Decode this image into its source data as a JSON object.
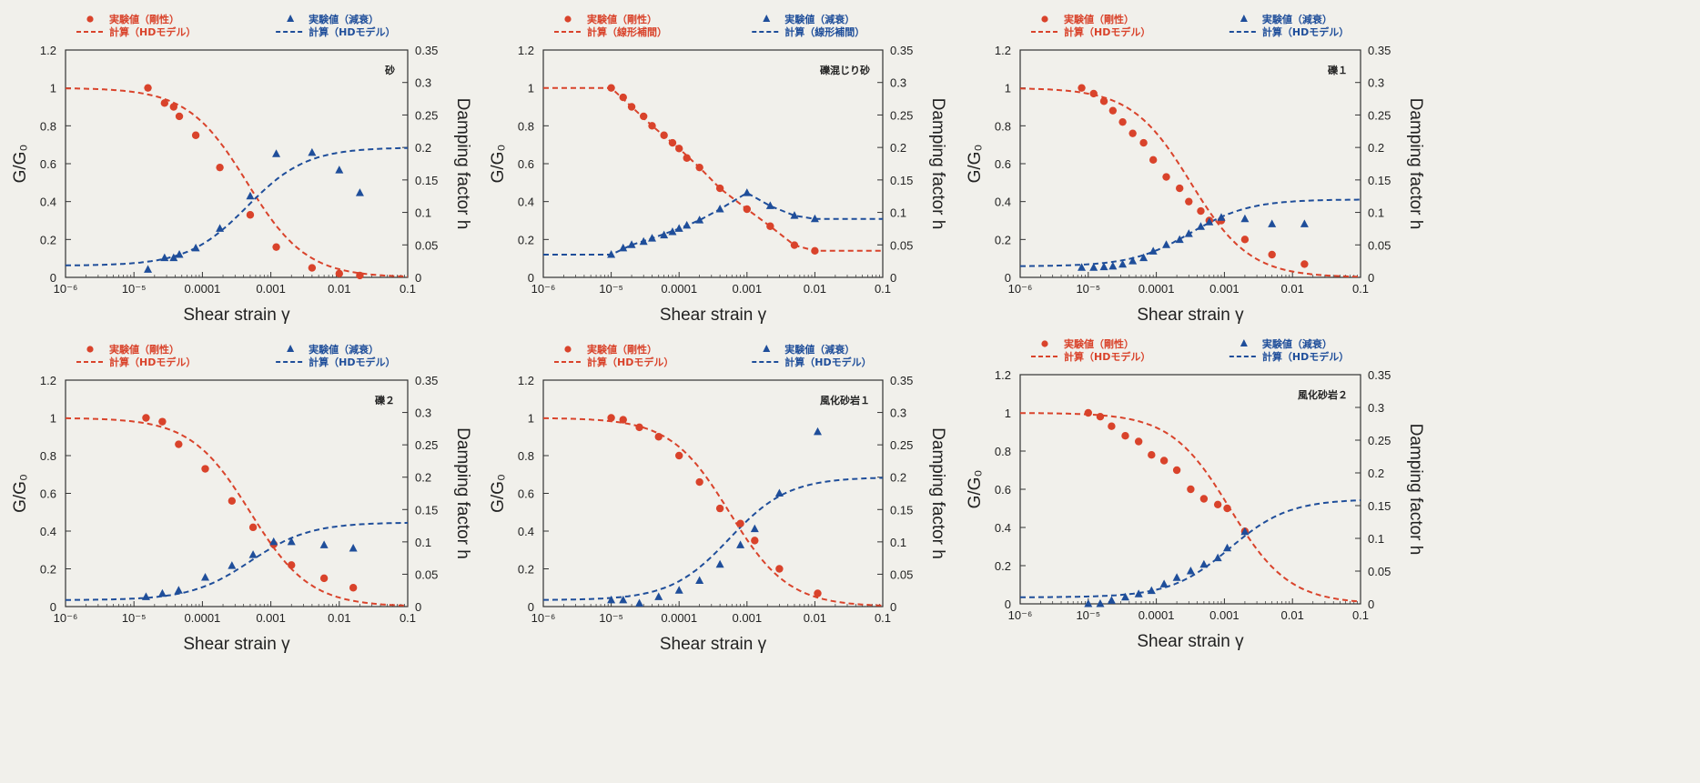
{
  "legend": {
    "stiffness_exp": "実験値（剛性）",
    "damping_exp": "実験値（減衰）",
    "hd_model": "計算（HDモデル）",
    "linear_interp": "計算（線形補間）"
  },
  "axes": {
    "xlabel": "Shear strain γ",
    "ylabel_left": "G/G₀",
    "ylabel_right": "Damping factor h",
    "x_ticks": [
      "10⁻⁶",
      "10⁻⁵",
      "0.0001",
      "0.001",
      "0.01",
      "0.1"
    ],
    "y_left_ticks": [
      "0",
      "0.2",
      "0.4",
      "0.6",
      "0.8",
      "1",
      "1.2"
    ],
    "y_right_ticks": [
      "0",
      "0.05",
      "0.1",
      "0.15",
      "0.2",
      "0.25",
      "0.3",
      "0.35"
    ]
  },
  "colors": {
    "stiffness": "#d9432b",
    "damping": "#1f4e9a",
    "axis": "#333333",
    "background": "#f1f0eb"
  },
  "chart_data": [
    {
      "type": "scatter",
      "title": "砂",
      "xscale": "log",
      "xlim": [
        1e-06,
        0.1
      ],
      "ylim_left": [
        0,
        1.2
      ],
      "ylim_right": [
        0,
        0.35
      ],
      "calc_label": "hd_model",
      "series": [
        {
          "name": "実験値（剛性）",
          "axis": "left",
          "x": [
            1.6e-05,
            2.8e-05,
            3.8e-05,
            4.6e-05,
            8e-05,
            0.00018,
            0.0005,
            0.0012,
            0.004,
            0.01,
            0.02
          ],
          "y": [
            1.0,
            0.92,
            0.9,
            0.85,
            0.75,
            0.58,
            0.33,
            0.16,
            0.05,
            0.02,
            0.01
          ]
        },
        {
          "name": "実験値（減衰）",
          "axis": "right",
          "x": [
            1.6e-05,
            2.8e-05,
            3.8e-05,
            4.6e-05,
            8e-05,
            0.00018,
            0.0005,
            0.0012,
            0.004,
            0.01,
            0.02
          ],
          "y": [
            0.012,
            0.03,
            0.03,
            0.035,
            0.045,
            0.075,
            0.125,
            0.19,
            0.192,
            0.165,
            0.13
          ]
        },
        {
          "name": "計算（HDモデル）G/G₀",
          "axis": "left",
          "curve": "hd_g",
          "g0": 1.0,
          "gref": 0.00045
        },
        {
          "name": "計算（HDモデル）h",
          "axis": "right",
          "curve": "hd_h",
          "h0": 0.018,
          "hmax": 0.2,
          "gref": 0.00045
        }
      ]
    },
    {
      "type": "scatter",
      "title": "礫混じり砂",
      "xscale": "log",
      "xlim": [
        1e-06,
        0.1
      ],
      "ylim_left": [
        0,
        1.2
      ],
      "ylim_right": [
        0,
        0.35
      ],
      "calc_label": "linear_interp",
      "series": [
        {
          "name": "実験値（剛性）",
          "axis": "left",
          "x": [
            1e-05,
            1.5e-05,
            2e-05,
            3e-05,
            4e-05,
            6e-05,
            8e-05,
            0.0001,
            0.00013,
            0.0002,
            0.0004,
            0.001,
            0.0022,
            0.005,
            0.01
          ],
          "y": [
            1.0,
            0.95,
            0.9,
            0.85,
            0.8,
            0.75,
            0.71,
            0.68,
            0.63,
            0.58,
            0.47,
            0.36,
            0.27,
            0.17,
            0.14
          ]
        },
        {
          "name": "実験値（減衰）",
          "axis": "right",
          "x": [
            1e-05,
            1.5e-05,
            2e-05,
            3e-05,
            4e-05,
            6e-05,
            8e-05,
            0.0001,
            0.00013,
            0.0002,
            0.0004,
            0.001,
            0.0022,
            0.005,
            0.01
          ],
          "y": [
            0.035,
            0.045,
            0.05,
            0.055,
            0.06,
            0.065,
            0.07,
            0.075,
            0.08,
            0.088,
            0.105,
            0.13,
            0.11,
            0.095,
            0.09
          ]
        },
        {
          "name": "計算（線形補間）G/G₀",
          "axis": "left",
          "curve": "polyline",
          "x": [
            1e-06,
            1e-05,
            2e-05,
            4e-05,
            0.0001,
            0.0002,
            0.0004,
            0.001,
            0.0022,
            0.005,
            0.01,
            0.1
          ],
          "y": [
            1.0,
            1.0,
            0.9,
            0.8,
            0.68,
            0.58,
            0.47,
            0.36,
            0.27,
            0.17,
            0.14,
            0.14
          ]
        },
        {
          "name": "計算（線形補間）h",
          "axis": "right",
          "curve": "polyline",
          "x": [
            1e-06,
            1e-05,
            2e-05,
            4e-05,
            0.0001,
            0.0002,
            0.0004,
            0.001,
            0.0022,
            0.005,
            0.01,
            0.1
          ],
          "y": [
            0.035,
            0.035,
            0.05,
            0.06,
            0.075,
            0.088,
            0.105,
            0.13,
            0.11,
            0.095,
            0.09,
            0.09
          ]
        }
      ]
    },
    {
      "type": "scatter",
      "title": "礫１",
      "xscale": "log",
      "xlim": [
        1e-06,
        0.1
      ],
      "ylim_left": [
        0,
        1.2
      ],
      "ylim_right": [
        0,
        0.35
      ],
      "calc_label": "hd_model",
      "series": [
        {
          "name": "実験値（剛性）",
          "axis": "left",
          "x": [
            8e-06,
            1.2e-05,
            1.7e-05,
            2.3e-05,
            3.2e-05,
            4.5e-05,
            6.5e-05,
            9e-05,
            0.00014,
            0.00022,
            0.0003,
            0.00045,
            0.0006,
            0.0009,
            0.002,
            0.005,
            0.015
          ],
          "y": [
            1.0,
            0.97,
            0.93,
            0.88,
            0.82,
            0.76,
            0.71,
            0.62,
            0.53,
            0.47,
            0.4,
            0.35,
            0.3,
            0.3,
            0.2,
            0.12,
            0.07
          ]
        },
        {
          "name": "実験値（減衰）",
          "axis": "right",
          "x": [
            8e-06,
            1.2e-05,
            1.7e-05,
            2.3e-05,
            3.2e-05,
            4.5e-05,
            6.5e-05,
            9e-05,
            0.00014,
            0.00022,
            0.0003,
            0.00045,
            0.0006,
            0.0009,
            0.002,
            0.005,
            0.015
          ],
          "y": [
            0.015,
            0.015,
            0.016,
            0.017,
            0.02,
            0.025,
            0.03,
            0.04,
            0.05,
            0.058,
            0.067,
            0.078,
            0.085,
            0.092,
            0.09,
            0.082,
            0.082
          ]
        },
        {
          "name": "計算（HDモデル）G/G₀",
          "axis": "left",
          "curve": "hd_g",
          "g0": 1.0,
          "gref": 0.00032
        },
        {
          "name": "計算（HDモデル）h",
          "axis": "right",
          "curve": "hd_h",
          "h0": 0.017,
          "hmax": 0.12,
          "gref": 0.00032
        }
      ]
    },
    {
      "type": "scatter",
      "title": "礫２",
      "xscale": "log",
      "xlim": [
        1e-06,
        0.1
      ],
      "ylim_left": [
        0,
        1.2
      ],
      "ylim_right": [
        0,
        0.35
      ],
      "calc_label": "hd_model",
      "series": [
        {
          "name": "実験値（剛性）",
          "axis": "left",
          "x": [
            1.5e-05,
            2.6e-05,
            4.5e-05,
            0.00011,
            0.00027,
            0.00055,
            0.0011,
            0.002,
            0.006,
            0.016
          ],
          "y": [
            1.0,
            0.98,
            0.86,
            0.73,
            0.56,
            0.42,
            0.33,
            0.22,
            0.15,
            0.1
          ]
        },
        {
          "name": "実験値（減衰）",
          "axis": "right",
          "x": [
            1.5e-05,
            2.6e-05,
            4.5e-05,
            0.00011,
            0.00027,
            0.00055,
            0.0011,
            0.002,
            0.006,
            0.016
          ],
          "y": [
            0.015,
            0.02,
            0.025,
            0.045,
            0.063,
            0.08,
            0.1,
            0.1,
            0.095,
            0.09
          ]
        },
        {
          "name": "計算（HDモデル）G/G₀",
          "axis": "left",
          "curve": "hd_g",
          "g0": 1.0,
          "gref": 0.0005
        },
        {
          "name": "計算（HDモデル）h",
          "axis": "right",
          "curve": "hd_h",
          "h0": 0.01,
          "hmax": 0.13,
          "gref": 0.0005
        }
      ]
    },
    {
      "type": "scatter",
      "title": "風化砂岩１",
      "xscale": "log",
      "xlim": [
        1e-06,
        0.1
      ],
      "ylim_left": [
        0,
        1.2
      ],
      "ylim_right": [
        0,
        0.35
      ],
      "calc_label": "hd_model",
      "series": [
        {
          "name": "実験値（剛性）",
          "axis": "left",
          "x": [
            1e-05,
            1.5e-05,
            2.6e-05,
            5e-05,
            0.0001,
            0.0002,
            0.0004,
            0.0008,
            0.0013,
            0.003,
            0.011
          ],
          "y": [
            1.0,
            0.99,
            0.95,
            0.9,
            0.8,
            0.66,
            0.52,
            0.44,
            0.35,
            0.2,
            0.07
          ]
        },
        {
          "name": "実験値（減衰）",
          "axis": "right",
          "x": [
            1e-05,
            1.5e-05,
            2.6e-05,
            5e-05,
            0.0001,
            0.0002,
            0.0004,
            0.0008,
            0.0013,
            0.003,
            0.011
          ],
          "y": [
            0.01,
            0.01,
            0.005,
            0.015,
            0.025,
            0.04,
            0.065,
            0.095,
            0.12,
            0.175,
            0.27
          ]
        },
        {
          "name": "計算（HDモデル）G/G₀",
          "axis": "left",
          "curve": "hd_g",
          "g0": 1.0,
          "gref": 0.00055
        },
        {
          "name": "計算（HDモデル）h",
          "axis": "right",
          "curve": "hd_h",
          "h0": 0.01,
          "hmax": 0.2,
          "gref": 0.00055
        }
      ]
    },
    {
      "type": "scatter",
      "title": "風化砂岩２",
      "xscale": "log",
      "xlim": [
        1e-06,
        0.1
      ],
      "ylim_left": [
        0,
        1.2
      ],
      "ylim_right": [
        0,
        0.35
      ],
      "calc_label": "hd_model",
      "series": [
        {
          "name": "実験値（剛性）",
          "axis": "left",
          "x": [
            1e-05,
            1.5e-05,
            2.2e-05,
            3.5e-05,
            5.5e-05,
            8.5e-05,
            0.00013,
            0.0002,
            0.00032,
            0.0005,
            0.0008,
            0.0011,
            0.002
          ],
          "y": [
            1.0,
            0.98,
            0.93,
            0.88,
            0.85,
            0.78,
            0.75,
            0.7,
            0.6,
            0.55,
            0.52,
            0.5,
            0.38
          ]
        },
        {
          "name": "実験値（減衰）",
          "axis": "right",
          "x": [
            1e-05,
            1.5e-05,
            2.2e-05,
            3.5e-05,
            5.5e-05,
            8.5e-05,
            0.00013,
            0.0002,
            0.00032,
            0.0005,
            0.0008,
            0.0011,
            0.002
          ],
          "y": [
            0.0,
            0.0,
            0.005,
            0.01,
            0.015,
            0.02,
            0.03,
            0.04,
            0.05,
            0.06,
            0.07,
            0.085,
            0.11
          ]
        },
        {
          "name": "計算（HDモデル）G/G₀",
          "axis": "left",
          "curve": "hd_g",
          "g0": 1.0,
          "gref": 0.0012
        },
        {
          "name": "計算（HDモデル）h",
          "axis": "right",
          "curve": "hd_h",
          "h0": 0.01,
          "hmax": 0.16,
          "gref": 0.0012
        }
      ]
    }
  ]
}
